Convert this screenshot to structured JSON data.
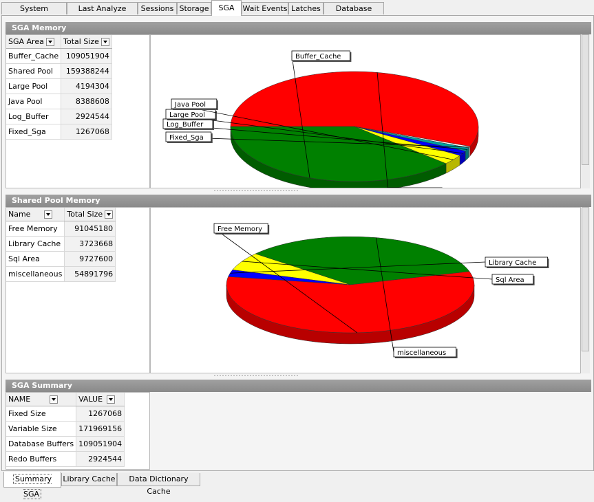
{
  "tabs": [
    {
      "label": "System Statistics",
      "active": false
    },
    {
      "label": "Last Analyze Stats",
      "active": false
    },
    {
      "label": "Sessions",
      "active": false
    },
    {
      "label": "Storage",
      "active": false
    },
    {
      "label": "SGA",
      "active": true
    },
    {
      "label": "Wait Events",
      "active": false
    },
    {
      "label": "Latches",
      "active": false
    },
    {
      "label": "Database Alerts",
      "active": false
    }
  ],
  "sga_memory": {
    "title": "SGA Memory",
    "columns": [
      "SGA Area",
      "Total Size"
    ],
    "rows": [
      [
        "Buffer_Cache",
        "109051904"
      ],
      [
        "Shared Pool",
        "159388244"
      ],
      [
        "Large Pool",
        "4194304"
      ],
      [
        "Java Pool",
        "8388608"
      ],
      [
        "Log_Buffer",
        "2924544"
      ],
      [
        "Fixed_Sga",
        "1267068"
      ]
    ]
  },
  "shared_pool": {
    "title": "Shared Pool Memory",
    "columns": [
      "Name",
      "Total Size"
    ],
    "rows": [
      [
        "Free Memory",
        "91045180"
      ],
      [
        "Library Cache",
        "3723668"
      ],
      [
        "Sql Area",
        "9727600"
      ],
      [
        "miscellaneous",
        "54891796"
      ]
    ]
  },
  "sga_summary": {
    "title": "SGA Summary",
    "columns": [
      "NAME",
      "VALUE"
    ],
    "rows": [
      [
        "Fixed Size",
        "1267068"
      ],
      [
        "Variable Size",
        "171969156"
      ],
      [
        "Database Buffers",
        "109051904"
      ],
      [
        "Redo Buffers",
        "2924544"
      ]
    ]
  },
  "chart_data": [
    {
      "type": "pie",
      "title": "",
      "series": [
        {
          "label": "Shared Pool",
          "value": 159388244,
          "color": "#ff0000"
        },
        {
          "label": "Fixed_Sga",
          "value": 1267068,
          "color": "#ffffff"
        },
        {
          "label": "Log_Buffer",
          "value": 2924544,
          "color": "#00a0a0"
        },
        {
          "label": "Large Pool",
          "value": 4194304,
          "color": "#0000ff"
        },
        {
          "label": "Java Pool",
          "value": 8388608,
          "color": "#ffff00"
        },
        {
          "label": "Buffer_Cache",
          "value": 109051904,
          "color": "#008000"
        }
      ]
    },
    {
      "type": "pie",
      "title": "",
      "series": [
        {
          "label": "Free Memory",
          "value": 91045180,
          "color": "#ff0000"
        },
        {
          "label": "Library Cache",
          "value": 3723668,
          "color": "#0000ff"
        },
        {
          "label": "Sql Area",
          "value": 9727600,
          "color": "#ffff00"
        },
        {
          "label": "miscellaneous",
          "value": 54891796,
          "color": "#008000"
        }
      ]
    }
  ],
  "bottom_tabs": [
    {
      "label": "Summary SGA",
      "active": true
    },
    {
      "label": "Library Cache",
      "active": false
    },
    {
      "label": "Data Dictionary Cache",
      "active": false
    }
  ]
}
